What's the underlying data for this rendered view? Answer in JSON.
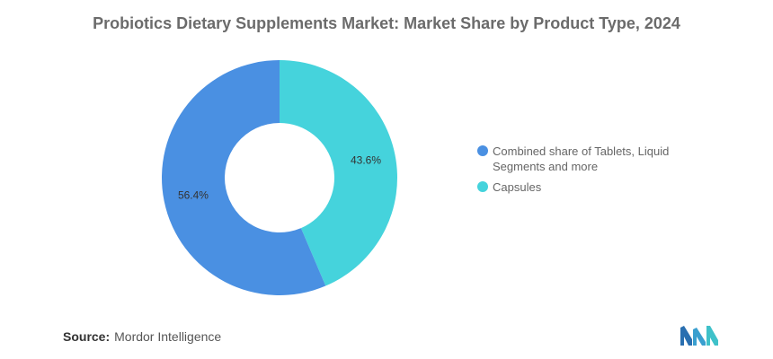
{
  "chart_data": {
    "type": "pie",
    "title": "Probiotics Dietary Supplements Market: Market Share by Product Type, 2024",
    "unit": "%",
    "legend_position": "right",
    "donut": true,
    "slices": [
      {
        "label": "Combined share of Tablets, Liquid Segments and more",
        "value": 56.4,
        "display": "56.4%",
        "color": "#4a90e2"
      },
      {
        "label": "Capsules",
        "value": 43.6,
        "display": "43.6%",
        "color": "#45d3dc"
      }
    ]
  },
  "footer": {
    "source_label": "Source:",
    "source_value": "Mordor Intelligence"
  },
  "logo": {
    "name": "mordor-intelligence-logo",
    "color_left": "#2a6fb0",
    "color_right": "#3fc1c9"
  }
}
